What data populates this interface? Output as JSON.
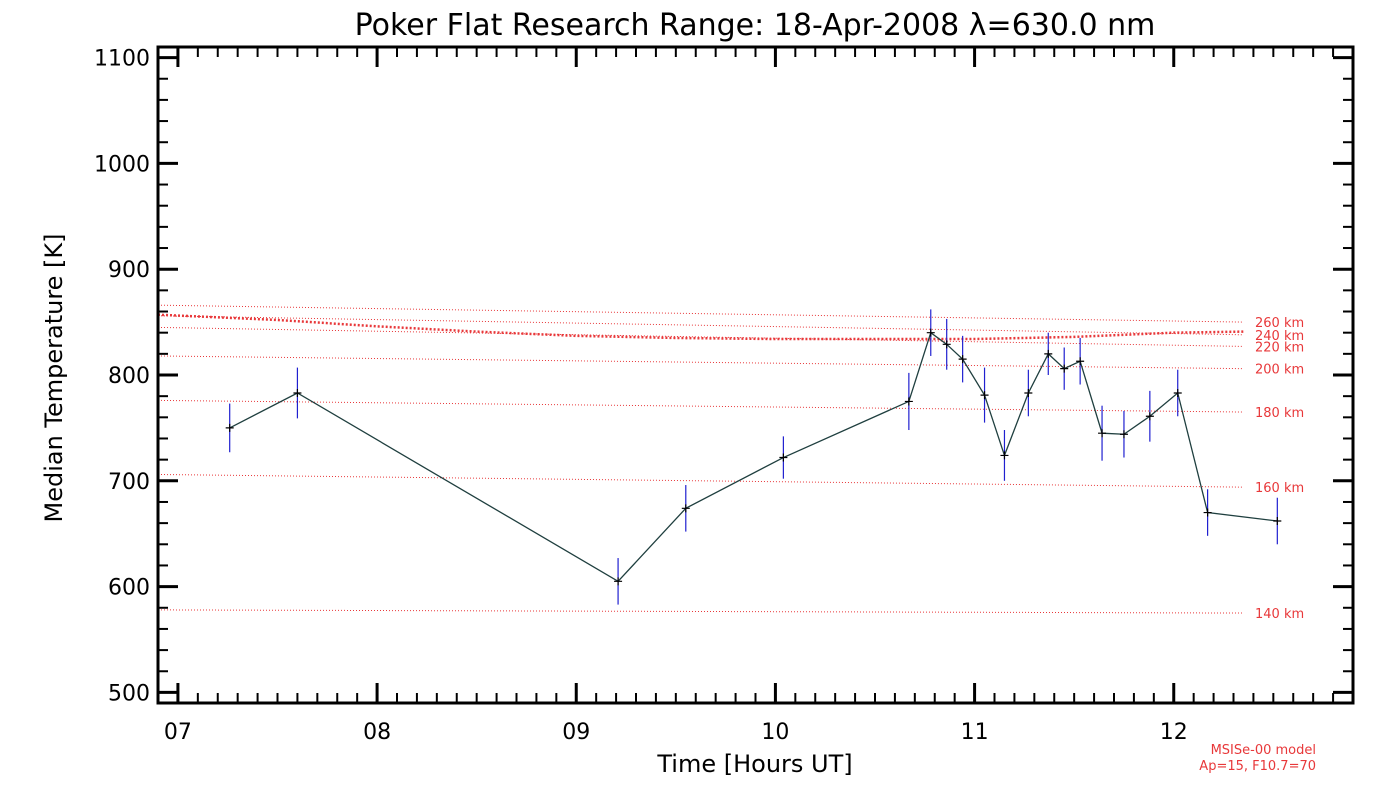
{
  "chart_data": {
    "type": "line",
    "title": "Poker Flat Research Range: 18-Apr-2008 λ=630.0 nm",
    "xlabel": "Time [Hours UT]",
    "ylabel": "Median Temperature [K]",
    "xlim": [
      6.9,
      12.9
    ],
    "ylim": [
      490,
      1110
    ],
    "x_ticks": [
      7,
      8,
      9,
      10,
      11,
      12
    ],
    "x_tick_labels": [
      "07",
      "08",
      "09",
      "10",
      "11",
      "12"
    ],
    "y_ticks": [
      500,
      600,
      700,
      800,
      900,
      1000,
      1100
    ],
    "y_tick_labels": [
      "500",
      "600",
      "700",
      "800",
      "900",
      "1000",
      "1100"
    ],
    "colors": {
      "series_line": "#1f3f3f",
      "error_bars": "#2020d0",
      "markers": "#000000",
      "model": "#e8383a"
    },
    "series": [
      {
        "values": [
          {
            "x": 7.26,
            "y": 750,
            "err": 23
          },
          {
            "x": 7.6,
            "y": 783,
            "err": 24
          },
          {
            "x": 9.21,
            "y": 605,
            "err": 22
          },
          {
            "x": 9.55,
            "y": 674,
            "err": 22
          },
          {
            "x": 10.04,
            "y": 722,
            "err": 20
          },
          {
            "x": 10.67,
            "y": 775,
            "err": 27
          },
          {
            "x": 10.78,
            "y": 840,
            "err": 22
          },
          {
            "x": 10.86,
            "y": 829,
            "err": 24
          },
          {
            "x": 10.94,
            "y": 815,
            "err": 22
          },
          {
            "x": 11.05,
            "y": 781,
            "err": 26
          },
          {
            "x": 11.15,
            "y": 724,
            "err": 24
          },
          {
            "x": 11.27,
            "y": 783,
            "err": 22
          },
          {
            "x": 11.37,
            "y": 820,
            "err": 20
          },
          {
            "x": 11.45,
            "y": 806,
            "err": 20
          },
          {
            "x": 11.53,
            "y": 813,
            "err": 22
          },
          {
            "x": 11.64,
            "y": 745,
            "err": 26
          },
          {
            "x": 11.75,
            "y": 744,
            "err": 22
          },
          {
            "x": 11.88,
            "y": 761,
            "err": 24
          },
          {
            "x": 12.02,
            "y": 783,
            "err": 22
          },
          {
            "x": 12.17,
            "y": 670,
            "err": 22
          },
          {
            "x": 12.52,
            "y": 662,
            "err": 22
          }
        ]
      }
    ],
    "model_lines": [
      {
        "label": "140 km",
        "x_start": 6.9,
        "x_end": 12.35,
        "y_start": 578,
        "y_end": 575
      },
      {
        "label": "160 km",
        "x_start": 6.9,
        "x_end": 12.35,
        "y_start": 706,
        "y_end": 694
      },
      {
        "label": "180 km",
        "x_start": 6.9,
        "x_end": 12.35,
        "y_start": 776,
        "y_end": 765
      },
      {
        "label": "200 km",
        "x_start": 6.9,
        "x_end": 12.35,
        "y_start": 818,
        "y_end": 806
      },
      {
        "label": "220 km",
        "x_start": 6.9,
        "x_end": 12.35,
        "y_start": 845,
        "y_end": 827
      },
      {
        "label": "240 km",
        "x_start": 6.9,
        "x_end": 12.35,
        "y_start": 856,
        "y_end": 838
      },
      {
        "label": "260 km",
        "x_start": 6.9,
        "x_end": 12.35,
        "y_start": 866,
        "y_end": 850
      }
    ],
    "model_median": [
      {
        "x": 6.9,
        "y": 857
      },
      {
        "x": 7.5,
        "y": 852
      },
      {
        "x": 8.0,
        "y": 846
      },
      {
        "x": 8.5,
        "y": 841
      },
      {
        "x": 9.0,
        "y": 837
      },
      {
        "x": 9.5,
        "y": 835
      },
      {
        "x": 10.0,
        "y": 834
      },
      {
        "x": 10.5,
        "y": 834
      },
      {
        "x": 11.0,
        "y": 834
      },
      {
        "x": 11.5,
        "y": 836
      },
      {
        "x": 12.0,
        "y": 840
      },
      {
        "x": 12.35,
        "y": 841
      }
    ],
    "model_note": [
      "MSISe-00 model",
      "Ap=15, F10.7=70"
    ]
  }
}
